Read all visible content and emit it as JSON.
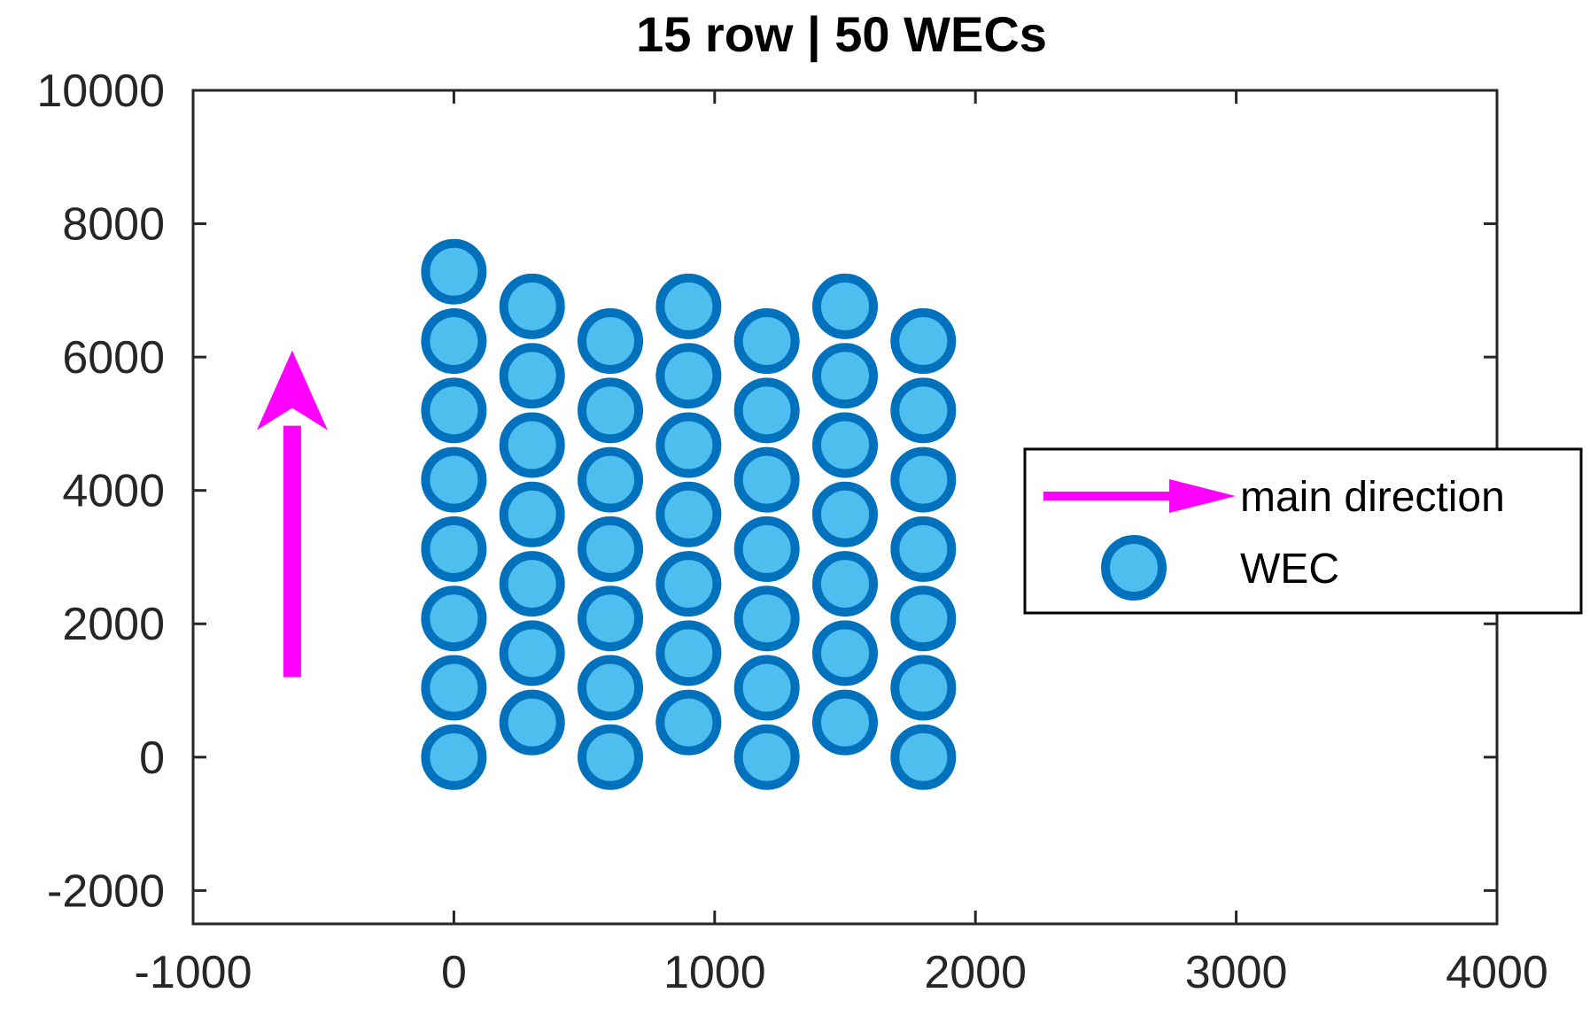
{
  "chart_data": {
    "type": "scatter",
    "title": "15 row | 50 WECs",
    "xlabel": "",
    "ylabel": "",
    "xlim": [
      -1000,
      4000
    ],
    "ylim": [
      -2500,
      10000
    ],
    "xticks": [
      -1000,
      0,
      1000,
      2000,
      3000,
      4000
    ],
    "yticks": [
      -2000,
      0,
      2000,
      4000,
      6000,
      8000,
      10000
    ],
    "xtick_labels": [
      "-1000",
      "0",
      "1000",
      "2000",
      "3000",
      "4000"
    ],
    "ytick_labels": [
      "-2000",
      "0",
      "2000",
      "4000",
      "6000",
      "8000",
      "10000"
    ],
    "grid": false,
    "series": [
      {
        "name": "WEC",
        "marker": "circle",
        "face_color": "#4DBEEE",
        "edge_color": "#0072BD",
        "points": [
          [
            0,
            0
          ],
          [
            0,
            1040
          ],
          [
            0,
            2080
          ],
          [
            0,
            3120
          ],
          [
            0,
            4160
          ],
          [
            0,
            5200
          ],
          [
            0,
            6240
          ],
          [
            0,
            7280
          ],
          [
            300,
            520
          ],
          [
            300,
            1560
          ],
          [
            300,
            2600
          ],
          [
            300,
            3640
          ],
          [
            300,
            4680
          ],
          [
            300,
            5720
          ],
          [
            300,
            6760
          ],
          [
            600,
            0
          ],
          [
            600,
            1040
          ],
          [
            600,
            2080
          ],
          [
            600,
            3120
          ],
          [
            600,
            4160
          ],
          [
            600,
            5200
          ],
          [
            600,
            6240
          ],
          [
            900,
            520
          ],
          [
            900,
            1560
          ],
          [
            900,
            2600
          ],
          [
            900,
            3640
          ],
          [
            900,
            4680
          ],
          [
            900,
            5720
          ],
          [
            900,
            6760
          ],
          [
            1200,
            0
          ],
          [
            1200,
            1040
          ],
          [
            1200,
            2080
          ],
          [
            1200,
            3120
          ],
          [
            1200,
            4160
          ],
          [
            1200,
            5200
          ],
          [
            1200,
            6240
          ],
          [
            1500,
            520
          ],
          [
            1500,
            1560
          ],
          [
            1500,
            2600
          ],
          [
            1500,
            3640
          ],
          [
            1500,
            4680
          ],
          [
            1500,
            5720
          ],
          [
            1500,
            6760
          ],
          [
            1800,
            0
          ],
          [
            1800,
            1040
          ],
          [
            1800,
            2080
          ],
          [
            1800,
            3120
          ],
          [
            1800,
            4160
          ],
          [
            1800,
            5200
          ],
          [
            1800,
            6240
          ]
        ]
      },
      {
        "name": "main direction",
        "type": "arrow",
        "color": "#FF00FF",
        "from": [
          -620,
          1200
        ],
        "to": [
          -620,
          6100
        ]
      }
    ],
    "legend": {
      "position": "east",
      "entries": [
        {
          "label": "main direction",
          "symbol": "arrow",
          "color": "#FF00FF"
        },
        {
          "label": "WEC",
          "symbol": "circle",
          "face_color": "#4DBEEE",
          "edge_color": "#0072BD"
        }
      ]
    }
  }
}
